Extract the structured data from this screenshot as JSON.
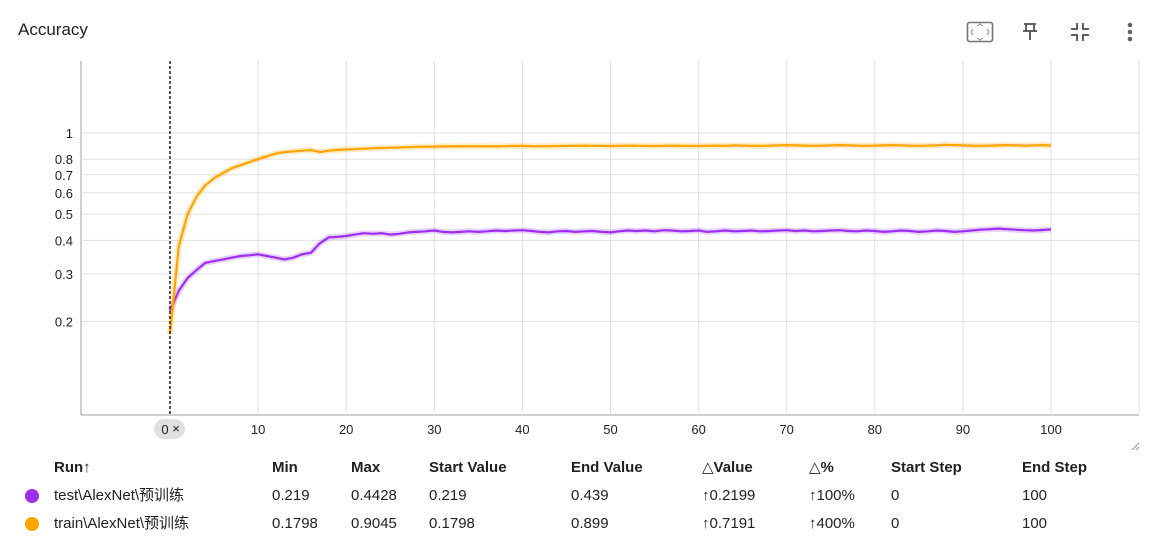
{
  "card": {
    "title": "Accuracy",
    "toolbar_icons": [
      "fit-domain-icon",
      "pin-icon",
      "collapse-icon",
      "more-vert-icon"
    ]
  },
  "chart_data": {
    "type": "line",
    "title": "Accuracy",
    "xlabel": "",
    "ylabel": "",
    "y_scale": "log",
    "xlim": [
      0,
      100
    ],
    "ylim": [
      0.09,
      1.85
    ],
    "x_ticks": [
      0,
      10,
      20,
      30,
      40,
      50,
      60,
      70,
      80,
      90,
      100
    ],
    "y_ticks": [
      0.2,
      0.3,
      0.4,
      0.5,
      0.6,
      0.7,
      0.8,
      1
    ],
    "y_tick_labels": [
      "0.2",
      "0.3",
      "0.4",
      "0.5",
      "0.6",
      "0.7",
      "0.8",
      "1"
    ],
    "grid": true,
    "step_marker": {
      "x": 0,
      "label": "0"
    },
    "series": [
      {
        "name": "test\\AlexNet\\预训练",
        "color": "#9b30f2",
        "x": [
          0,
          1,
          2,
          3,
          4,
          5,
          6,
          7,
          8,
          9,
          10,
          11,
          12,
          13,
          14,
          15,
          16,
          17,
          18,
          19,
          20,
          21,
          22,
          23,
          24,
          25,
          26,
          27,
          28,
          29,
          30,
          31,
          32,
          33,
          34,
          35,
          36,
          37,
          38,
          39,
          40,
          41,
          42,
          43,
          44,
          45,
          46,
          47,
          48,
          49,
          50,
          51,
          52,
          53,
          54,
          55,
          56,
          57,
          58,
          59,
          60,
          61,
          62,
          63,
          64,
          65,
          66,
          67,
          68,
          69,
          70,
          71,
          72,
          73,
          74,
          75,
          76,
          77,
          78,
          79,
          80,
          81,
          82,
          83,
          84,
          85,
          86,
          87,
          88,
          89,
          90,
          91,
          92,
          93,
          94,
          95,
          96,
          97,
          98,
          99,
          100
        ],
        "y": [
          0.219,
          0.26,
          0.29,
          0.31,
          0.33,
          0.335,
          0.34,
          0.345,
          0.35,
          0.352,
          0.355,
          0.35,
          0.345,
          0.34,
          0.345,
          0.355,
          0.36,
          0.39,
          0.41,
          0.412,
          0.415,
          0.42,
          0.425,
          0.423,
          0.425,
          0.42,
          0.423,
          0.428,
          0.43,
          0.432,
          0.435,
          0.43,
          0.428,
          0.43,
          0.432,
          0.43,
          0.432,
          0.435,
          0.433,
          0.435,
          0.436,
          0.433,
          0.43,
          0.428,
          0.432,
          0.433,
          0.43,
          0.432,
          0.433,
          0.43,
          0.428,
          0.432,
          0.435,
          0.433,
          0.435,
          0.432,
          0.436,
          0.435,
          0.432,
          0.433,
          0.435,
          0.43,
          0.432,
          0.435,
          0.432,
          0.433,
          0.435,
          0.432,
          0.433,
          0.435,
          0.436,
          0.433,
          0.435,
          0.432,
          0.433,
          0.435,
          0.436,
          0.433,
          0.432,
          0.435,
          0.433,
          0.43,
          0.432,
          0.435,
          0.433,
          0.43,
          0.432,
          0.435,
          0.433,
          0.43,
          0.432,
          0.435,
          0.438,
          0.44,
          0.442,
          0.44,
          0.438,
          0.436,
          0.435,
          0.437,
          0.439
        ]
      },
      {
        "name": "train\\AlexNet\\预训练",
        "color": "#ffa500",
        "x": [
          0,
          1,
          2,
          3,
          4,
          5,
          6,
          7,
          8,
          9,
          10,
          11,
          12,
          13,
          14,
          15,
          16,
          17,
          18,
          19,
          20,
          21,
          22,
          23,
          24,
          25,
          26,
          27,
          28,
          29,
          30,
          31,
          32,
          33,
          34,
          35,
          36,
          37,
          38,
          39,
          40,
          41,
          42,
          43,
          44,
          45,
          46,
          47,
          48,
          49,
          50,
          51,
          52,
          53,
          54,
          55,
          56,
          57,
          58,
          59,
          60,
          61,
          62,
          63,
          64,
          65,
          66,
          67,
          68,
          69,
          70,
          71,
          72,
          73,
          74,
          75,
          76,
          77,
          78,
          79,
          80,
          81,
          82,
          83,
          84,
          85,
          86,
          87,
          88,
          89,
          90,
          91,
          92,
          93,
          94,
          95,
          96,
          97,
          98,
          99,
          100
        ],
        "y": [
          0.1798,
          0.38,
          0.5,
          0.58,
          0.64,
          0.68,
          0.71,
          0.74,
          0.76,
          0.78,
          0.8,
          0.82,
          0.84,
          0.85,
          0.855,
          0.86,
          0.865,
          0.85,
          0.86,
          0.865,
          0.87,
          0.872,
          0.875,
          0.878,
          0.88,
          0.882,
          0.884,
          0.886,
          0.888,
          0.89,
          0.891,
          0.892,
          0.893,
          0.892,
          0.893,
          0.894,
          0.893,
          0.892,
          0.894,
          0.895,
          0.896,
          0.894,
          0.893,
          0.894,
          0.895,
          0.896,
          0.897,
          0.898,
          0.897,
          0.896,
          0.895,
          0.897,
          0.898,
          0.897,
          0.896,
          0.895,
          0.897,
          0.898,
          0.897,
          0.896,
          0.895,
          0.897,
          0.898,
          0.897,
          0.9,
          0.898,
          0.897,
          0.896,
          0.898,
          0.9,
          0.902,
          0.9,
          0.898,
          0.897,
          0.898,
          0.9,
          0.902,
          0.9,
          0.898,
          0.897,
          0.898,
          0.9,
          0.902,
          0.9,
          0.898,
          0.897,
          0.898,
          0.9,
          0.9045,
          0.902,
          0.9,
          0.898,
          0.897,
          0.898,
          0.9,
          0.902,
          0.9,
          0.898,
          0.9,
          0.902,
          0.899
        ]
      }
    ]
  },
  "table": {
    "headers": {
      "run": "Run↑",
      "min": "Min",
      "max": "Max",
      "start_value": "Start Value",
      "end_value": "End Value",
      "delta_value": "△Value",
      "delta_pct": "△%",
      "start_step": "Start Step",
      "end_step": "End Step"
    },
    "rows": [
      {
        "color": "#9b30f2",
        "run": "test\\AlexNet\\预训练",
        "min": "0.219",
        "max": "0.4428",
        "start_value": "0.219",
        "end_value": "0.439",
        "delta_value": "↑0.2199",
        "delta_pct": "↑100%",
        "start_step": "0",
        "end_step": "100"
      },
      {
        "color": "#ffa500",
        "run": "train\\AlexNet\\预训练",
        "min": "0.1798",
        "max": "0.9045",
        "start_value": "0.1798",
        "end_value": "0.899",
        "delta_value": "↑0.7191",
        "delta_pct": "↑400%",
        "start_step": "0",
        "end_step": "100"
      }
    ]
  }
}
